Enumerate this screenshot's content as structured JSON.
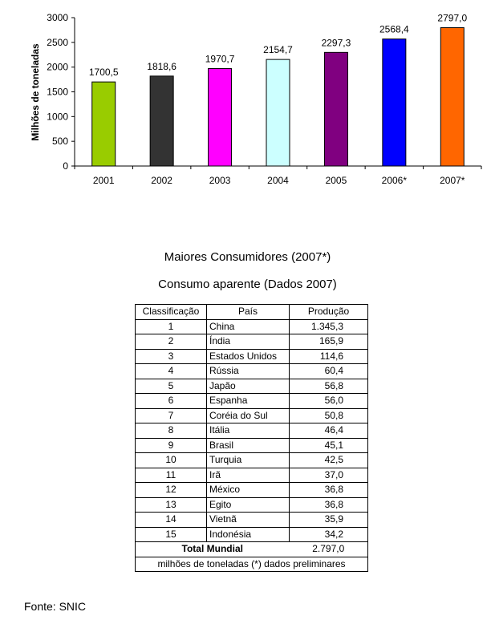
{
  "chart_data": {
    "type": "bar",
    "ylabel": "Milhões de toneladas",
    "ylim": [
      0,
      3000
    ],
    "yticks": [
      "0",
      "500",
      "1000",
      "1500",
      "2000",
      "2500",
      "3000"
    ],
    "categories": [
      "2001",
      "2002",
      "2003",
      "2004",
      "2005",
      "2006*",
      "2007*"
    ],
    "values": [
      1700.5,
      1818.6,
      1970.7,
      2154.7,
      2297.3,
      2568.4,
      2797.0
    ],
    "value_labels": [
      "1700,5",
      "1818,6",
      "1970,7",
      "2154,7",
      "2297,3",
      "2568,4",
      "2797,0"
    ],
    "colors": [
      "#99cc00",
      "#333333",
      "#ff00ff",
      "#ccffff",
      "#800080",
      "#0000ff",
      "#ff6600"
    ],
    "grid": false,
    "legend": "none"
  },
  "table": {
    "title": "Maiores Consumidores (2007*)",
    "subtitle": "Consumo aparente (Dados 2007)",
    "headers": [
      "Classificação",
      "País",
      "Produção"
    ],
    "rows": [
      [
        "1",
        "China",
        "1.345,3"
      ],
      [
        "2",
        "Índia",
        "165,9"
      ],
      [
        "3",
        "Estados Unidos",
        "114,6"
      ],
      [
        "4",
        "Rússia",
        "60,4"
      ],
      [
        "5",
        "Japão",
        "56,8"
      ],
      [
        "6",
        "Espanha",
        "56,0"
      ],
      [
        "7",
        "Coréia do Sul",
        "50,8"
      ],
      [
        "8",
        "Itália",
        "46,4"
      ],
      [
        "9",
        "Brasil",
        "45,1"
      ],
      [
        "10",
        "Turquia",
        "42,5"
      ],
      [
        "11",
        "Irã",
        "37,0"
      ],
      [
        "12",
        "México",
        "36,8"
      ],
      [
        "13",
        "Egito",
        "36,8"
      ],
      [
        "14",
        "Vietnã",
        "35,9"
      ],
      [
        "15",
        "Indonésia",
        "34,2"
      ]
    ],
    "total_label": "Total Mundial",
    "total_value": "2.797,0",
    "note": "milhões de toneladas (*) dados preliminares"
  },
  "source": "Fonte: SNIC"
}
